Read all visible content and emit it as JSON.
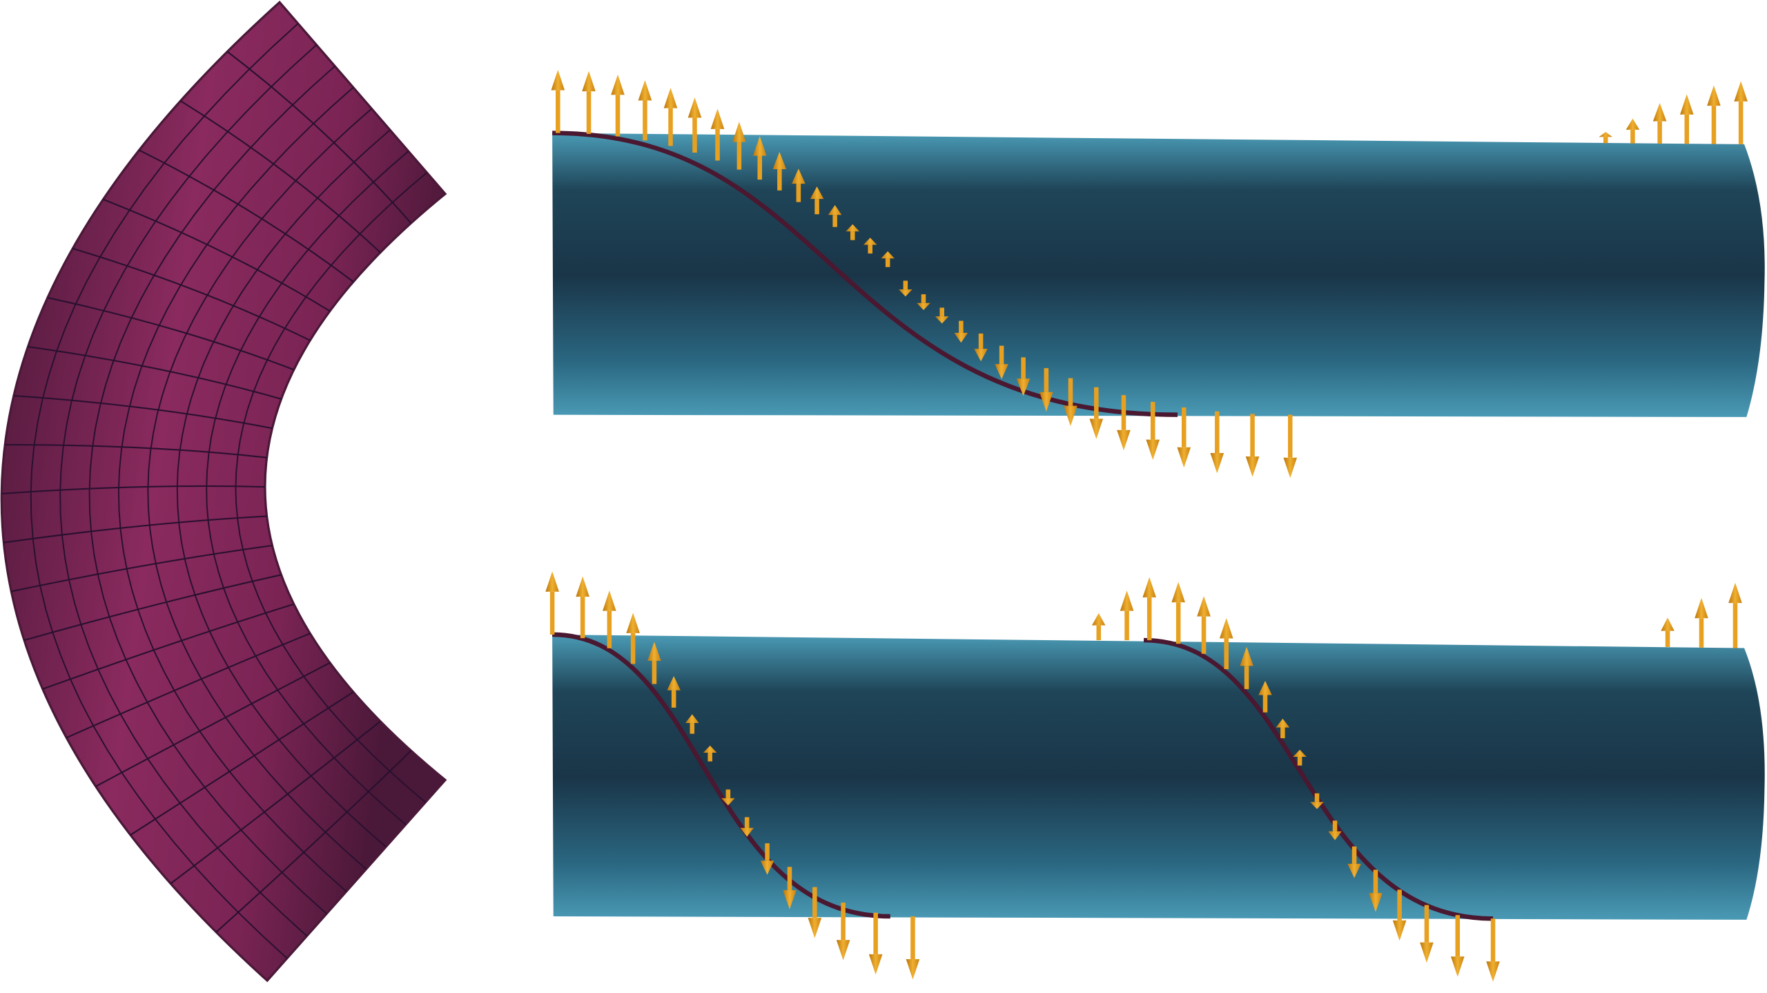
{
  "colors": {
    "tube": "#8a2a5e",
    "tube_dark": "#4a1838",
    "grid": "#2a1030",
    "cylinder_light": "#4a9ab5",
    "cylinder_dark": "#1a3548",
    "curve": "#4a1830",
    "arrow": "#e8a020",
    "arrow_dark": "#b8740c"
  }
}
